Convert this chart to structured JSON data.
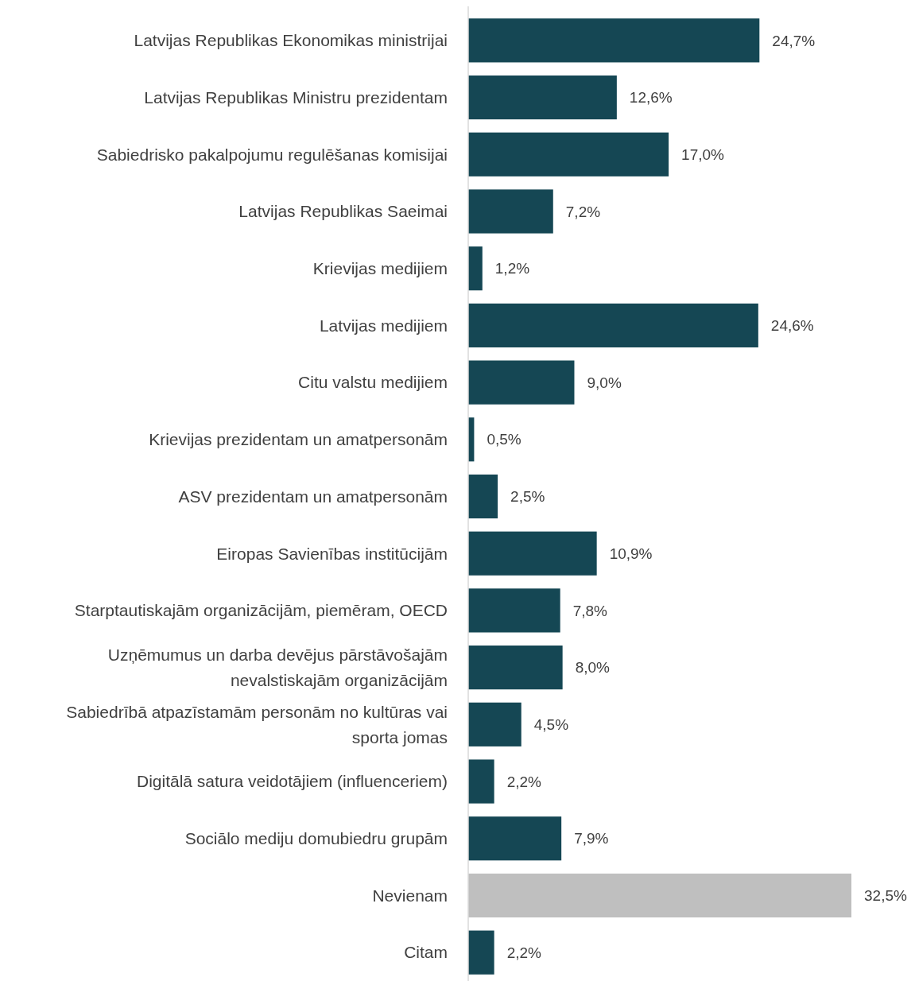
{
  "chart_data": {
    "type": "bar",
    "orientation": "horizontal",
    "categories": [
      "Latvijas Republikas Ekonomikas ministrijai",
      "Latvijas Republikas Ministru prezidentam",
      "Sabiedrisko pakalpojumu regulēšanas komisijai",
      "Latvijas Republikas Saeimai",
      "Krievijas medijiem",
      "Latvijas medijiem",
      "Citu valstu medijiem",
      "Krievijas prezidentam un amatpersonām",
      "ASV prezidentam un amatpersonām",
      "Eiropas Savienības institūcijām",
      "Starptautiskajām organizācijām, piemēram, OECD",
      "Uzņēmumus un darba devējus pārstāvošajām nevalstiskajām organizācijām",
      "Sabiedrībā atpazīstamām personām no kultūras vai sporta jomas",
      "Digitālā satura veidotājiem (influenceriem)",
      "Sociālo mediju domubiedru grupām",
      "Nevienam",
      "Citam"
    ],
    "values": [
      24.7,
      12.6,
      17.0,
      7.2,
      1.2,
      24.6,
      9.0,
      0.5,
      2.5,
      10.9,
      7.8,
      8.0,
      4.5,
      2.2,
      7.9,
      32.5,
      2.2
    ],
    "value_labels": [
      "24,7%",
      "12,6%",
      "17,0%",
      "7,2%",
      "1,2%",
      "24,6%",
      "9,0%",
      "0,5%",
      "2,5%",
      "10,9%",
      "7,8%",
      "8,0%",
      "4,5%",
      "2,2%",
      "7,9%",
      "32,5%",
      "2,2%"
    ],
    "colors": [
      "#154754",
      "#154754",
      "#154754",
      "#154754",
      "#154754",
      "#154754",
      "#154754",
      "#154754",
      "#154754",
      "#154754",
      "#154754",
      "#154754",
      "#154754",
      "#154754",
      "#154754",
      "#bfbfbf",
      "#154754"
    ]
  }
}
